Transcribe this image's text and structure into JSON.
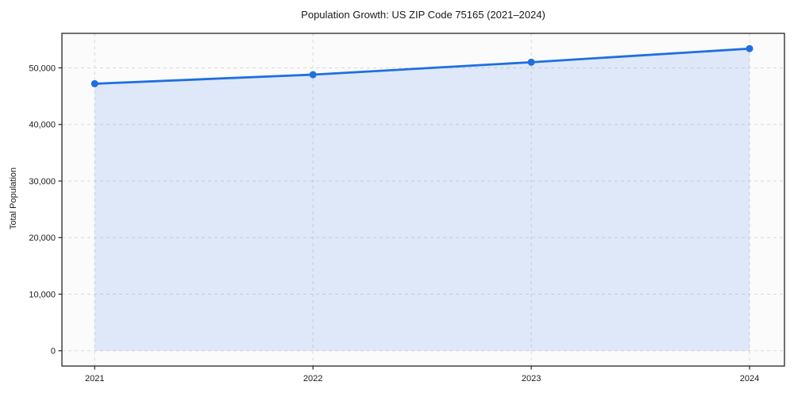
{
  "chart_data": {
    "type": "line",
    "title": "Population Growth: US ZIP Code 75165 (2021–2024)",
    "xlabel": "",
    "ylabel": "Total Population",
    "x": [
      2021,
      2022,
      2023,
      2024
    ],
    "series": [
      {
        "name": "Total Population",
        "values": [
          47200,
          48800,
          51000,
          53400
        ]
      }
    ],
    "xticks": [
      2021,
      2022,
      2023,
      2024
    ],
    "yticks": [
      0,
      10000,
      20000,
      30000,
      40000,
      50000
    ],
    "ytick_format": "comma",
    "xlim": [
      2020.85,
      2024.16
    ],
    "ylim": [
      -2700,
      56100
    ],
    "grid": true,
    "grid_style": "dashed",
    "legend": "none",
    "fill_area_below_line_to": 0,
    "colors": {
      "line": "#1f6fe0",
      "marker": "#1f6fe0",
      "fill": "rgba(31,111,224,0.13)",
      "grid": "#d8d8d8",
      "spine": "#262626",
      "plot_background": "#fbfbfc",
      "text": "#1a1a1a"
    },
    "line_width": 2.8,
    "marker_radius": 4.5
  }
}
